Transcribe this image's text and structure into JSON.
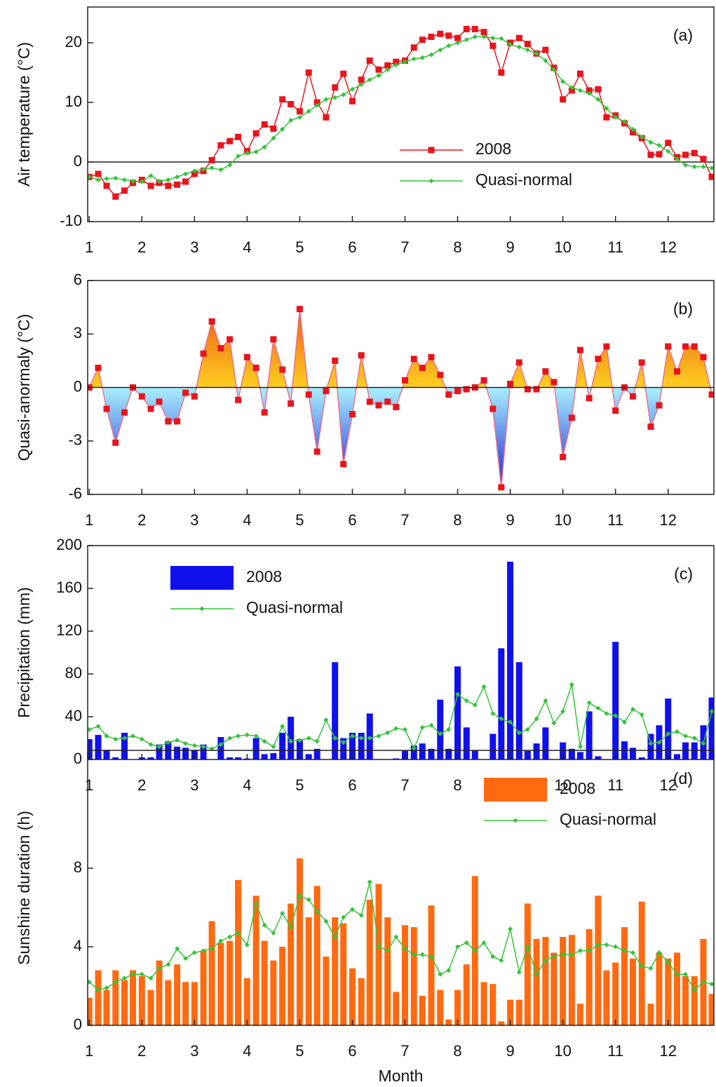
{
  "chart_data": [
    {
      "type": "line",
      "label": "(a)",
      "y_label": "Air temperature (°C)",
      "legend": "lower right",
      "zero_line": true,
      "xlim": [
        0.97,
        12.87
      ],
      "xticks": [
        1,
        2,
        3,
        4,
        5,
        6,
        7,
        8,
        9,
        10,
        11,
        12
      ],
      "ylim": [
        -10,
        26
      ],
      "yticks": [
        -10,
        0,
        10,
        20
      ],
      "x": [
        1,
        1.17,
        1.33,
        1.5,
        1.67,
        1.83,
        2,
        2.17,
        2.33,
        2.5,
        2.67,
        2.83,
        3,
        3.17,
        3.33,
        3.5,
        3.67,
        3.83,
        4,
        4.17,
        4.33,
        4.5,
        4.67,
        4.83,
        5,
        5.17,
        5.33,
        5.5,
        5.67,
        5.83,
        6,
        6.17,
        6.33,
        6.5,
        6.67,
        6.83,
        7,
        7.17,
        7.33,
        7.5,
        7.67,
        7.83,
        8,
        8.17,
        8.33,
        8.5,
        8.67,
        8.83,
        9,
        9.17,
        9.33,
        9.5,
        9.67,
        9.83,
        10,
        10.17,
        10.33,
        10.5,
        10.67,
        10.83,
        11,
        11.17,
        11.33,
        11.5,
        11.67,
        11.83,
        12,
        12.17,
        12.33,
        12.5,
        12.67,
        12.83
      ],
      "series": [
        {
          "name": "2008",
          "type": "line",
          "marker": "square",
          "color": "#e8141c",
          "values": [
            -2.5,
            -2,
            -4,
            -5.8,
            -4.8,
            -3.5,
            -3,
            -4,
            -3.5,
            -4,
            -3.8,
            -3.3,
            -2,
            -1.5,
            0.3,
            2.8,
            3.5,
            4.2,
            1.8,
            4.8,
            6.3,
            5.6,
            10.5,
            9.7,
            8.5,
            15,
            10,
            7.5,
            12.5,
            14.8,
            10.2,
            13.8,
            17,
            15.5,
            16.2,
            16.8,
            17,
            19.2,
            20.5,
            21,
            21.5,
            21.2,
            20.8,
            22.3,
            22.3,
            21.8,
            19.5,
            15,
            20,
            20.8,
            19.8,
            18.2,
            18.8,
            15.8,
            10.5,
            12,
            14.8,
            12,
            12.2,
            7.5,
            7.8,
            6.5,
            5,
            4,
            1.2,
            1.3,
            3.2,
            0.8,
            1.2,
            1.5,
            0.5,
            -2.5
          ]
        },
        {
          "name": "Quasi-normal",
          "type": "line",
          "marker": "diamond",
          "color": "#33c43a",
          "values": [
            -2.5,
            -3,
            -2.8,
            -2.7,
            -3,
            -3.2,
            -3.3,
            -2.3,
            -3.2,
            -3,
            -2.5,
            -2,
            -1.5,
            -1.2,
            -1,
            -1.3,
            -0.5,
            1,
            1.5,
            1.7,
            2.5,
            4,
            5.5,
            7,
            7.5,
            8.5,
            9.5,
            10.5,
            10.8,
            11.3,
            12.2,
            13,
            13.8,
            14.5,
            15.5,
            16.3,
            16.8,
            17.3,
            17.5,
            18,
            18.8,
            19.5,
            20,
            20.5,
            21,
            21,
            20.8,
            20.7,
            19.7,
            19.3,
            18.8,
            18.2,
            17,
            15.5,
            13.5,
            12.5,
            12,
            11.5,
            10.5,
            9,
            7.5,
            6.8,
            5.5,
            4.2,
            3.3,
            2.8,
            1.8,
            0.5,
            -0.5,
            -0.8,
            -0.8,
            -1
          ]
        }
      ]
    },
    {
      "type": "area",
      "label": "(b)",
      "y_label": "Quasi-anormaly (°C)",
      "zero_line": true,
      "xlim": [
        0.97,
        12.87
      ],
      "xticks": [
        1,
        2,
        3,
        4,
        5,
        6,
        7,
        8,
        9,
        10,
        11,
        12
      ],
      "ylim": [
        -6,
        6
      ],
      "yticks": [
        -6,
        -3,
        0,
        3,
        6
      ],
      "x": [
        1,
        1.17,
        1.33,
        1.5,
        1.67,
        1.83,
        2,
        2.17,
        2.33,
        2.5,
        2.67,
        2.83,
        3,
        3.17,
        3.33,
        3.5,
        3.67,
        3.83,
        4,
        4.17,
        4.33,
        4.5,
        4.67,
        4.83,
        5,
        5.17,
        5.33,
        5.5,
        5.67,
        5.83,
        6,
        6.17,
        6.33,
        6.5,
        6.67,
        6.83,
        7,
        7.17,
        7.33,
        7.5,
        7.67,
        7.83,
        8,
        8.17,
        8.33,
        8.5,
        8.67,
        8.83,
        9,
        9.17,
        9.33,
        9.5,
        9.67,
        9.83,
        10,
        10.17,
        10.33,
        10.5,
        10.67,
        10.83,
        11,
        11.17,
        11.33,
        11.5,
        11.67,
        11.83,
        12,
        12.17,
        12.33,
        12.5,
        12.67,
        12.83
      ],
      "series": [
        {
          "type": "area",
          "marker": "square",
          "color": "#e8141c",
          "line_color": "#e87090",
          "positive_colors": [
            "#e83010",
            "#ffd020"
          ],
          "negative_colors": [
            "#a8f0ff",
            "#1818d0"
          ],
          "values": [
            0,
            1.1,
            -1.2,
            -3.1,
            -1.4,
            0,
            -0.5,
            -1.2,
            -0.8,
            -1.9,
            -1.9,
            -0.3,
            -0.5,
            1.9,
            3.7,
            2.2,
            2.7,
            -0.7,
            1.7,
            1.1,
            -1.4,
            2.7,
            1,
            -0.9,
            4.4,
            -0.4,
            -3.6,
            -0.2,
            1.5,
            -4.3,
            -1.5,
            1.8,
            -0.8,
            -1,
            -0.8,
            -1.1,
            0.4,
            1.6,
            1.1,
            1.7,
            0.7,
            -0.4,
            -0.2,
            -0.1,
            0,
            0.4,
            -1.2,
            -5.6,
            0.2,
            1.4,
            -0.1,
            -0.1,
            0.9,
            0.3,
            -3.9,
            -1.7,
            2.1,
            -0.6,
            1.6,
            2.3,
            -1.3,
            0,
            -0.5,
            1.4,
            -2.2,
            -1,
            2.3,
            0.9,
            2.3,
            2.3,
            1.7,
            -0.4
          ]
        }
      ]
    },
    {
      "type": "bar",
      "label": "(c)",
      "y_label": "Precipitation (mm)",
      "legend": "upper left",
      "xlim": [
        0.97,
        12.87
      ],
      "xticks": [
        1,
        2,
        3,
        4,
        5,
        6,
        7,
        8,
        9,
        10,
        11,
        12
      ],
      "ylim": [
        0,
        200
      ],
      "yticks": [
        0,
        40,
        80,
        120,
        160,
        200
      ],
      "x": [
        1,
        1.17,
        1.33,
        1.5,
        1.67,
        1.83,
        2,
        2.17,
        2.33,
        2.5,
        2.67,
        2.83,
        3,
        3.17,
        3.33,
        3.5,
        3.67,
        3.83,
        4,
        4.17,
        4.33,
        4.5,
        4.67,
        4.83,
        5,
        5.17,
        5.33,
        5.5,
        5.67,
        5.83,
        6,
        6.17,
        6.33,
        6.5,
        6.67,
        6.83,
        7,
        7.17,
        7.33,
        7.5,
        7.67,
        7.83,
        8,
        8.17,
        8.33,
        8.5,
        8.67,
        8.83,
        9,
        9.17,
        9.33,
        9.5,
        9.67,
        9.83,
        10,
        10.17,
        10.33,
        10.5,
        10.67,
        10.83,
        11,
        11.17,
        11.33,
        11.5,
        11.67,
        11.83,
        12,
        12.17,
        12.33,
        12.5,
        12.67,
        12.83
      ],
      "series": [
        {
          "name": "2008",
          "type": "bar",
          "color": "#1010ee",
          "values": [
            19,
            23,
            9,
            2,
            25,
            0,
            2,
            2,
            14,
            17,
            12,
            11,
            9,
            14,
            0,
            21,
            2,
            2,
            1,
            20,
            5,
            6,
            25,
            40,
            19,
            5,
            10,
            0,
            91,
            20,
            25,
            25,
            43,
            0,
            0,
            1,
            8,
            13,
            15,
            10,
            56,
            10,
            87,
            30,
            8,
            0,
            24,
            104,
            185,
            91,
            8,
            15,
            30,
            0,
            16,
            10,
            7,
            45,
            3,
            0,
            110,
            17,
            11,
            2,
            24,
            32,
            57,
            5,
            16,
            16,
            32,
            58
          ]
        },
        {
          "name": "Quasi-normal",
          "type": "line",
          "marker": "diamond",
          "color": "#33c43a",
          "values": [
            28,
            31,
            22,
            19,
            20,
            22,
            19,
            14,
            12,
            16,
            18,
            15,
            13,
            12,
            10,
            14,
            20,
            22,
            23,
            22,
            17,
            12,
            31,
            17,
            18,
            20,
            17,
            37,
            20,
            16,
            22,
            20,
            20,
            22,
            25,
            29,
            28,
            10,
            30,
            32,
            24,
            28,
            61,
            55,
            51,
            68,
            43,
            38,
            35,
            25,
            28,
            38,
            55,
            34,
            45,
            70,
            12,
            53,
            48,
            43,
            41,
            35,
            47,
            42,
            15,
            16,
            24,
            26,
            22,
            20,
            15,
            45
          ]
        }
      ]
    },
    {
      "type": "bar",
      "label": "(d)",
      "y_label": "Sunshine duration (h)",
      "x_label": "Month",
      "legend": "upper right",
      "xlim": [
        0.97,
        12.87
      ],
      "xticks": [
        1,
        2,
        3,
        4,
        5,
        6,
        7,
        8,
        9,
        10,
        11,
        12
      ],
      "ylim": [
        0,
        14
      ],
      "yticks": [
        0,
        4,
        8
      ],
      "x": [
        1,
        1.17,
        1.33,
        1.5,
        1.67,
        1.83,
        2,
        2.17,
        2.33,
        2.5,
        2.67,
        2.83,
        3,
        3.17,
        3.33,
        3.5,
        3.67,
        3.83,
        4,
        4.17,
        4.33,
        4.5,
        4.67,
        4.83,
        5,
        5.17,
        5.33,
        5.5,
        5.67,
        5.83,
        6,
        6.17,
        6.33,
        6.5,
        6.67,
        6.83,
        7,
        7.17,
        7.33,
        7.5,
        7.67,
        7.83,
        8,
        8.17,
        8.33,
        8.5,
        8.67,
        8.83,
        9,
        9.17,
        9.33,
        9.5,
        9.67,
        9.83,
        10,
        10.17,
        10.33,
        10.5,
        10.67,
        10.83,
        11,
        11.17,
        11.33,
        11.5,
        11.67,
        11.83,
        12,
        12.17,
        12.33,
        12.5,
        12.67,
        12.83
      ],
      "series": [
        {
          "name": "2008",
          "type": "bar",
          "color": "#ff6a10",
          "values": [
            1.4,
            2.8,
            1.8,
            2.8,
            2.3,
            2.8,
            2.5,
            1.8,
            3.3,
            2.3,
            3.1,
            2.2,
            2.2,
            3.8,
            5.3,
            4.2,
            4.3,
            7.4,
            2.4,
            6.6,
            4.3,
            3.3,
            4,
            6.2,
            8.5,
            5.5,
            7.1,
            3.5,
            5.5,
            5.2,
            2.9,
            2.4,
            6.4,
            7.2,
            5.5,
            1.7,
            5.1,
            5,
            1.5,
            6.1,
            1.8,
            0.3,
            1.8,
            3.1,
            7.6,
            2.2,
            2.1,
            0.2,
            1.3,
            1.3,
            6.2,
            4.4,
            4.5,
            3.7,
            4.5,
            4.6,
            1.1,
            4.9,
            6.6,
            2.8,
            3.2,
            5,
            3.4,
            6.3,
            1.1,
            3.7,
            3.4,
            3.7,
            2.5,
            2.5,
            4.4,
            1.6
          ]
        },
        {
          "name": "Quasi-normal",
          "type": "line",
          "marker": "diamond",
          "color": "#33c43a",
          "values": [
            2.2,
            1.8,
            1.9,
            2.2,
            2.4,
            2.6,
            2.6,
            2.4,
            2.9,
            3.1,
            3.9,
            3.4,
            3.7,
            3.8,
            3.9,
            4.3,
            4.5,
            4.7,
            4.1,
            6.2,
            5.1,
            4.7,
            5.7,
            5,
            6.6,
            6.4,
            5.8,
            5.3,
            4.5,
            5.5,
            5.9,
            5.6,
            7.3,
            4,
            3.8,
            4.5,
            3.9,
            3.6,
            3.6,
            3.5,
            2.6,
            2.8,
            4,
            4.2,
            3.8,
            4.2,
            3.5,
            3.3,
            4.9,
            2.7,
            4,
            2.6,
            3.3,
            3.5,
            3.6,
            3.6,
            3.8,
            3.8,
            4.1,
            4.1,
            4,
            3.8,
            3.7,
            3,
            2.9,
            3.7,
            3.2,
            2.6,
            2.6,
            1.8,
            2.2,
            2.1
          ]
        }
      ]
    }
  ]
}
